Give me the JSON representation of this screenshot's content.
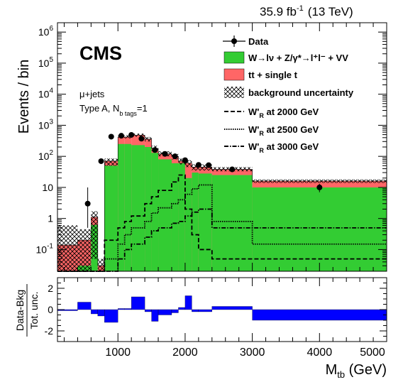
{
  "header": {
    "lumi_value": "35.9 fb",
    "lumi_exp": "-1",
    "lumi_energy": "(13 TeV)"
  },
  "colors": {
    "ewk": "#33cc33",
    "top": "#ff6666",
    "ratio": "#0000ff",
    "data": "#000000"
  },
  "chart_data": [
    {
      "type": "bar",
      "panel": "main",
      "title": "",
      "ylabel": "Events / bin",
      "xlabel": "",
      "y_scale": "log",
      "ylim": [
        0.02,
        2000000
      ],
      "xlim": [
        100,
        5000
      ],
      "y_ticks": [
        {
          "value": 0.1,
          "base": "10",
          "exp": "-1"
        },
        {
          "value": 1,
          "base": "1",
          "exp": ""
        },
        {
          "value": 10,
          "base": "10",
          "exp": ""
        },
        {
          "value": 100,
          "base": "10",
          "exp": "2"
        },
        {
          "value": 1000,
          "base": "10",
          "exp": "3"
        },
        {
          "value": 10000,
          "base": "10",
          "exp": "4"
        },
        {
          "value": 100000,
          "base": "10",
          "exp": "5"
        },
        {
          "value": 1000000,
          "base": "10",
          "exp": "6"
        }
      ],
      "bin_edges": [
        100,
        400,
        600,
        700,
        800,
        1000,
        1100,
        1200,
        1400,
        1500,
        1600,
        1800,
        1900,
        2000,
        2100,
        2200,
        2400,
        3000,
        5000
      ],
      "series": [
        {
          "name": "W→lν + Z/γ*→l⁺l⁻ + VV",
          "key": "ewk",
          "values": [
            0.02,
            0.03,
            0.62,
            0.02,
            50,
            250,
            250,
            230,
            200,
            130,
            80,
            60,
            60,
            20,
            30,
            28,
            25,
            10
          ]
        },
        {
          "name": "tt + single t",
          "key": "top",
          "values": [
            0.14,
            0.2,
            1.1,
            0.03,
            70,
            420,
            420,
            480,
            360,
            180,
            120,
            100,
            70,
            60,
            45,
            45,
            38,
            16
          ]
        },
        {
          "name": "W'R at 2000 GeV",
          "key": "sig2000",
          "values": [
            0.02,
            0.02,
            0.02,
            0.02,
            0.2,
            0.5,
            0.8,
            1.2,
            3,
            5,
            8,
            15,
            25,
            2,
            0.3,
            0.1,
            0.05,
            0.05
          ]
        },
        {
          "name": "W'R at 2500 GeV",
          "key": "sig2500",
          "values": [
            0.02,
            0.02,
            0.02,
            0.02,
            0.05,
            0.15,
            0.3,
            0.5,
            0.8,
            1.5,
            2.2,
            3,
            4,
            6,
            9,
            12,
            0.8,
            0.15
          ]
        },
        {
          "name": "W'R at 3000 GeV",
          "key": "sig3000",
          "values": [
            0.02,
            0.02,
            0.02,
            0.02,
            0.02,
            0.05,
            0.1,
            0.15,
            0.25,
            0.4,
            0.5,
            0.7,
            0.8,
            1.2,
            1.6,
            2.0,
            0.5,
            0.5
          ]
        }
      ],
      "background_uncertainty": {
        "name": "background uncertainty",
        "lower": [
          0.02,
          0.02,
          0.05,
          0.02,
          50,
          380,
          380,
          430,
          300,
          150,
          100,
          80,
          55,
          45,
          35,
          35,
          33,
          14
        ],
        "upper": [
          0.6,
          0.45,
          1.7,
          0.05,
          85,
          480,
          480,
          540,
          420,
          220,
          145,
          120,
          85,
          75,
          55,
          55,
          45,
          18
        ]
      },
      "data_points": {
        "name": "Data",
        "x": [
          550,
          750,
          900,
          1050,
          1200,
          1350,
          1550,
          1700,
          1850,
          2000,
          2200,
          2350,
          2700,
          4000
        ],
        "y": [
          3,
          70,
          430,
          460,
          490,
          370,
          160,
          120,
          100,
          75,
          53,
          52,
          38,
          10
        ],
        "err_low": [
          2.5,
          8,
          20,
          21,
          22,
          19,
          13,
          11,
          10,
          9,
          7,
          7,
          6,
          3
        ],
        "err_high": [
          7,
          8,
          20,
          21,
          22,
          19,
          13,
          11,
          10,
          9,
          7,
          7,
          6,
          3
        ]
      },
      "legend": {
        "placement": "top-right",
        "entries": [
          {
            "key": "data",
            "label": "Data"
          },
          {
            "key": "ewk",
            "label": "W→lν + Z/γ*→l⁺l⁻ + VV"
          },
          {
            "key": "top",
            "label": "tt + single t"
          },
          {
            "key": "unc",
            "label": "background uncertainty"
          },
          {
            "key": "sig2000",
            "label": "W'R at 2000 GeV"
          },
          {
            "key": "sig2500",
            "label": "W'R at 2500 GeV"
          },
          {
            "key": "sig3000",
            "label": "W'R at 3000 GeV"
          }
        ]
      },
      "annotations": {
        "experiment": "CMS",
        "channel": "μ+jets",
        "category": "Type A, N",
        "category_sub": "b tags",
        "category_value": "=1"
      }
    },
    {
      "type": "bar",
      "panel": "ratio",
      "ylabel_top": "Data-Bkg",
      "ylabel_bottom": "Tot. unc.",
      "xlabel_main": "M",
      "xlabel_sub": "tb",
      "xlabel_unit": " (GeV)",
      "ylim": [
        -3,
        3
      ],
      "y_ticks": [
        -2,
        0,
        2
      ],
      "x_ticks": [
        1000,
        2000,
        3000,
        4000,
        5000
      ],
      "bin_edges": [
        100,
        400,
        600,
        700,
        800,
        1000,
        1100,
        1200,
        1400,
        1500,
        1600,
        1800,
        1900,
        2000,
        2100,
        2200,
        2400,
        3000,
        5000
      ],
      "values": [
        -0.1,
        0.7,
        -0.4,
        -0.6,
        -1.2,
        0.1,
        0.1,
        1.2,
        -0.2,
        -1.1,
        -0.5,
        -0.3,
        0.2,
        1.3,
        -0.2,
        -0.2,
        0.3,
        -1.0
      ]
    }
  ]
}
